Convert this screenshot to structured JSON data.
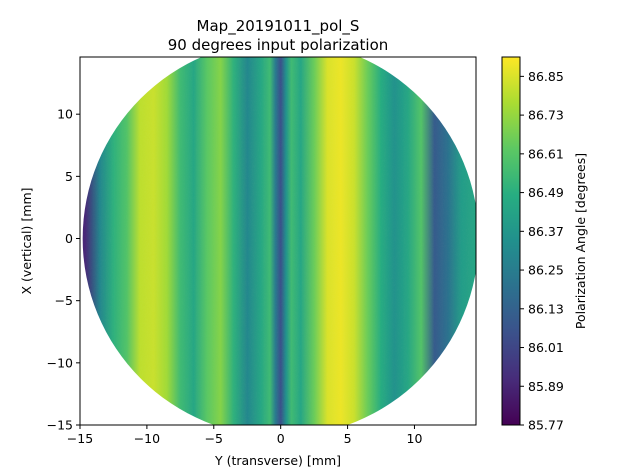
{
  "chart_data": {
    "type": "heatmap",
    "title": "Map_20191011_pol_S",
    "subtitle": "90 degrees input polarization",
    "xlabel": "Y (transverse) [mm]",
    "ylabel": "X (vertical) [mm]",
    "xlim": [
      -15,
      14.6
    ],
    "ylim": [
      -15,
      14.6
    ],
    "x_ticks": [
      -15,
      -10,
      -5,
      0,
      5,
      10
    ],
    "y_ticks": [
      -15,
      -10,
      -5,
      0,
      5,
      10
    ],
    "shape": "circular",
    "radius_mm": 14.8,
    "colormap": "viridis",
    "colorbar": {
      "label": "Polarization Angle [degrees]",
      "range": [
        85.77,
        86.91
      ],
      "ticks": [
        "85.77",
        "85.89",
        "86.01",
        "86.13",
        "86.25",
        "86.37",
        "86.49",
        "86.61",
        "86.73",
        "86.85"
      ]
    },
    "stripes_along_y": {
      "y_mm": [
        -14.6,
        -13.5,
        -12.5,
        -11.5,
        -10.5,
        -9.5,
        -8.5,
        -7.5,
        -6.5,
        -5.5,
        -4.5,
        -3.5,
        -2.5,
        -1.5,
        -0.8,
        -0.4,
        0,
        0.4,
        0.8,
        1.5,
        2.5,
        3.5,
        4.5,
        5.5,
        6.5,
        7.5,
        8.5,
        9.5,
        10.5,
        11.5,
        12.5,
        13.5,
        14.6
      ],
      "angle_deg": [
        85.9,
        86.3,
        86.5,
        86.6,
        86.8,
        86.82,
        86.75,
        86.55,
        86.45,
        86.62,
        86.7,
        86.5,
        86.3,
        86.45,
        86.55,
        86.25,
        86.05,
        86.35,
        86.55,
        86.45,
        86.65,
        86.85,
        86.88,
        86.82,
        86.65,
        86.48,
        86.35,
        86.45,
        86.6,
        86.1,
        86.2,
        86.4,
        86.45
      ]
    }
  }
}
